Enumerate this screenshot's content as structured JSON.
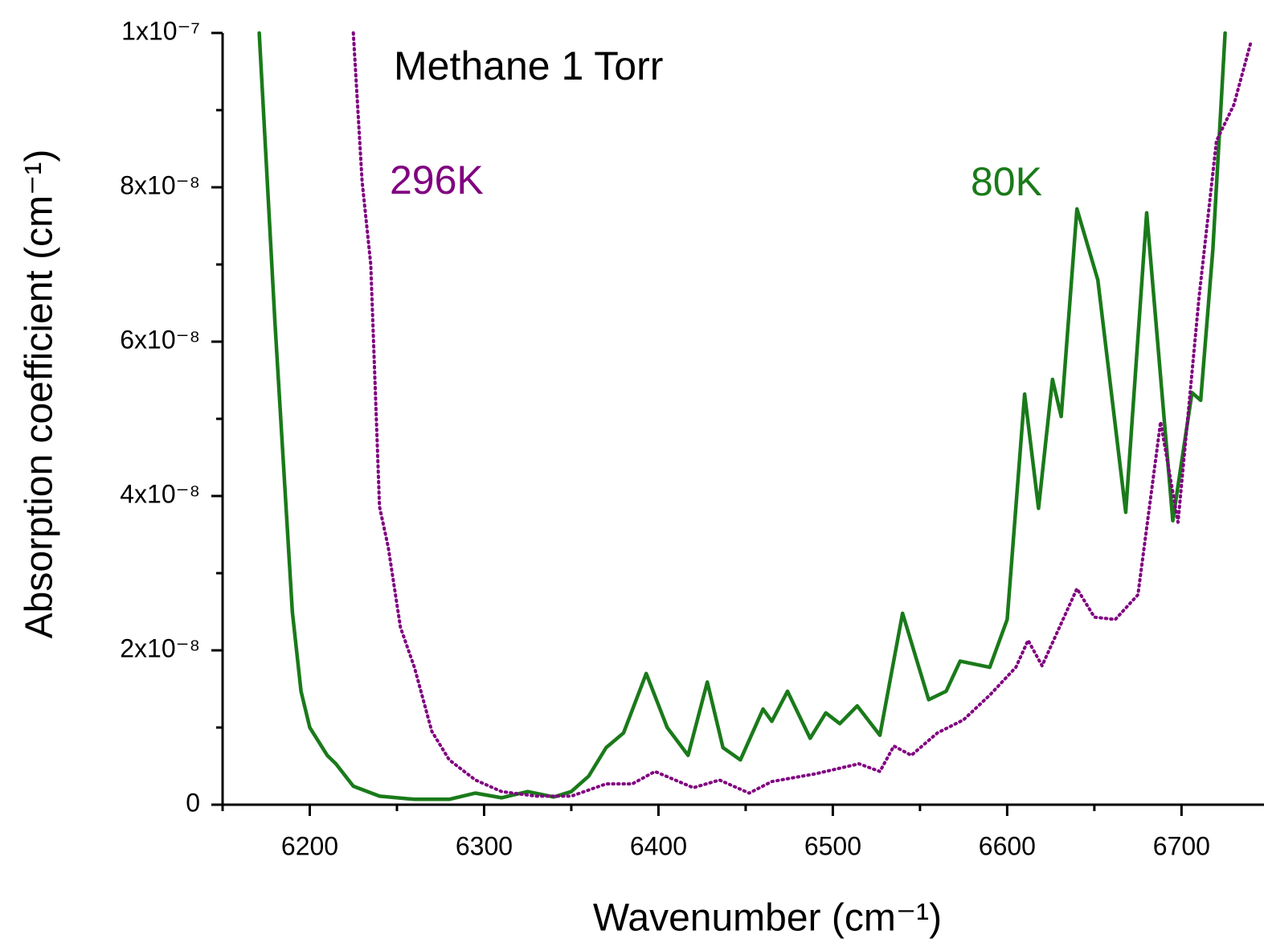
{
  "chart_data": {
    "type": "line",
    "title": "Methane  1 Torr",
    "xlabel": "Wavenumber (cm⁻¹)",
    "ylabel": "Absorption coefficient (cm⁻¹)",
    "xlim": [
      6150,
      6745
    ],
    "xticks": [
      6200,
      6300,
      6400,
      6500,
      6600,
      6700
    ],
    "xminorticks": [
      6150,
      6250,
      6350,
      6450,
      6550,
      6650
    ],
    "ylim": [
      0,
      1e-07
    ],
    "yticks": [
      {
        "value": 0,
        "label": "0"
      },
      {
        "value": 2e-08,
        "label": "2x10⁻⁸"
      },
      {
        "value": 4e-08,
        "label": "4x10⁻⁸"
      },
      {
        "value": 6e-08,
        "label": "6x10⁻⁸"
      },
      {
        "value": 8e-08,
        "label": "8x10⁻⁸"
      },
      {
        "value": 1e-07,
        "label": "1x10⁻⁷"
      }
    ],
    "yminorticks": [
      1e-08,
      3e-08,
      5e-08,
      7e-08,
      9e-08
    ],
    "grid": false,
    "series": [
      {
        "name": "80K",
        "color": "#1a7a1a",
        "linestyle": "solid",
        "x": [
          6171,
          6180,
          6190,
          6195,
          6200,
          6210,
          6215,
          6225,
          6240,
          6260,
          6280,
          6295,
          6310,
          6325,
          6340,
          6350,
          6360,
          6370,
          6380,
          6393,
          6405,
          6417,
          6428,
          6437,
          6447,
          6460,
          6465,
          6474,
          6487,
          6496,
          6504,
          6514,
          6527,
          6540,
          6555,
          6565,
          6573,
          6590,
          6600,
          6610,
          6618,
          6626,
          6631,
          6640,
          6652,
          6668,
          6680,
          6695,
          6706,
          6711,
          6718,
          6725
        ],
        "values": [
          1e-07,
          6.26e-08,
          2.5e-08,
          1.47e-08,
          1e-08,
          6.4e-09,
          5.3e-09,
          2.4e-09,
          1.1e-09,
          7e-10,
          7e-10,
          1.5e-09,
          9e-10,
          1.7e-09,
          1e-09,
          1.7e-09,
          3.7e-09,
          7.4e-09,
          9.3e-09,
          1.7e-08,
          1e-08,
          6.4e-09,
          1.59e-08,
          7.4e-09,
          5.8e-09,
          1.24e-08,
          1.08e-08,
          1.47e-08,
          8.6e-09,
          1.19e-08,
          1.05e-08,
          1.28e-08,
          9e-09,
          2.48e-08,
          1.36e-08,
          1.47e-08,
          1.86e-08,
          1.78e-08,
          2.4e-08,
          5.32e-08,
          3.84e-08,
          5.51e-08,
          5.03e-08,
          7.72e-08,
          6.8e-08,
          3.79e-08,
          7.67e-08,
          3.68e-08,
          5.34e-08,
          5.24e-08,
          7.2e-08,
          1e-07
        ]
      },
      {
        "name": "296K",
        "color": "#800080",
        "linestyle": "dotted",
        "x": [
          6225,
          6230,
          6235,
          6240,
          6245,
          6252,
          6260,
          6270,
          6280,
          6295,
          6310,
          6330,
          6350,
          6370,
          6385,
          6398,
          6420,
          6435,
          6452,
          6465,
          6490,
          6515,
          6527,
          6535,
          6545,
          6560,
          6575,
          6590,
          6605,
          6612,
          6620,
          6630,
          6640,
          6650,
          6662,
          6675,
          6688,
          6698,
          6710,
          6720,
          6730,
          6740
        ],
        "values": [
          1e-07,
          8.08e-08,
          7e-08,
          3.86e-08,
          3.34e-08,
          2.3e-08,
          1.78e-08,
          9.5e-09,
          5.8e-09,
          3.2e-09,
          1.7e-09,
          1.1e-09,
          1.1e-09,
          2.7e-09,
          2.7e-09,
          4.3e-09,
          2.2e-09,
          3.2e-09,
          1.5e-09,
          3e-09,
          4e-09,
          5.3e-09,
          4.3e-09,
          7.6e-09,
          6.4e-09,
          9.3e-09,
          1.1e-08,
          1.42e-08,
          1.78e-08,
          2.13e-08,
          1.8e-08,
          2.3e-08,
          2.8e-08,
          2.43e-08,
          2.4e-08,
          2.72e-08,
          4.96e-08,
          3.66e-08,
          6.57e-08,
          8.6e-08,
          9.07e-08,
          9.9e-08
        ]
      }
    ]
  }
}
